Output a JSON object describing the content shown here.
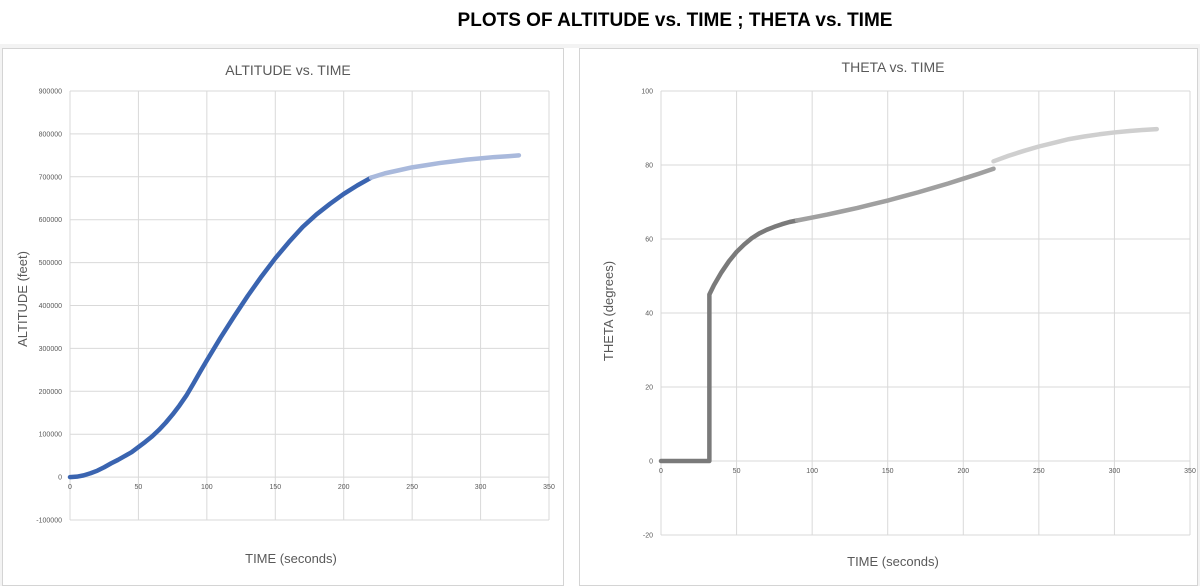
{
  "page": {
    "title": "PLOTS OF ALTITUDE vs. TIME  ;   THETA vs. TIME"
  },
  "colors": {
    "grid": "#d9d9d9",
    "text": "#595959"
  },
  "chart_data": [
    {
      "type": "line",
      "title": "ALTITUDE vs. TIME",
      "xlabel": "TIME (seconds)",
      "ylabel": "ALTITUDE (feet)",
      "xlim": [
        0,
        350
      ],
      "ylim": [
        -100000,
        900000
      ],
      "xticks": [
        0,
        50,
        100,
        150,
        200,
        250,
        300,
        350
      ],
      "yticks": [
        -100000,
        0,
        100000,
        200000,
        300000,
        400000,
        500000,
        600000,
        700000,
        800000,
        900000
      ],
      "grid": true,
      "series": [
        {
          "color": "#3a64b0",
          "x": [
            0,
            5,
            10,
            15,
            20,
            25,
            30,
            35,
            40,
            45,
            50,
            55,
            60,
            65,
            70,
            75,
            80,
            85,
            90,
            95,
            100,
            110,
            120,
            130,
            140,
            150,
            160,
            170,
            180,
            190,
            200,
            210,
            220
          ],
          "y": [
            0,
            1000,
            4000,
            9000,
            15000,
            23000,
            32000,
            40000,
            49000,
            58000,
            70000,
            82000,
            95000,
            110000,
            127000,
            146000,
            167000,
            190000,
            217000,
            245000,
            272000,
            325000,
            375000,
            423000,
            468000,
            510000,
            548000,
            583000,
            612000,
            637000,
            660000,
            680000,
            698000
          ]
        },
        {
          "color": "#a9b9dc",
          "x": [
            220,
            230,
            240,
            250,
            260,
            270,
            280,
            290,
            300,
            310,
            320,
            328
          ],
          "y": [
            698000,
            708000,
            715000,
            722000,
            727000,
            732000,
            736000,
            740000,
            743000,
            746000,
            748000,
            750000
          ]
        }
      ]
    },
    {
      "type": "line",
      "title": "THETA vs. TIME",
      "xlabel": "TIME (seconds)",
      "ylabel": "THETA (degrees)",
      "xlim": [
        0,
        350
      ],
      "ylim": [
        -20,
        100
      ],
      "xticks": [
        0,
        50,
        100,
        150,
        200,
        250,
        300,
        350
      ],
      "yticks": [
        -20,
        0,
        20,
        40,
        60,
        80,
        100
      ],
      "grid": true,
      "series": [
        {
          "color": "#7a7a7a",
          "x": [
            0,
            10,
            20,
            32,
            32,
            35,
            40,
            45,
            50,
            55,
            60,
            65,
            70,
            75,
            80,
            85,
            90
          ],
          "y": [
            0,
            0,
            0,
            0,
            45,
            47.5,
            51,
            54,
            56.5,
            58.5,
            60.2,
            61.5,
            62.5,
            63.3,
            64,
            64.6,
            65
          ]
        },
        {
          "color": "#a0a0a0",
          "x": [
            90,
            100,
            110,
            120,
            130,
            140,
            150,
            160,
            170,
            180,
            190,
            200,
            210,
            220
          ],
          "y": [
            65,
            65.8,
            66.6,
            67.5,
            68.4,
            69.4,
            70.4,
            71.5,
            72.6,
            73.8,
            75,
            76.3,
            77.6,
            79
          ]
        },
        {
          "color": "#cfcfcf",
          "x": [
            220,
            230,
            240,
            250,
            260,
            270,
            280,
            290,
            300,
            310,
            320,
            328
          ],
          "y": [
            81,
            82.5,
            83.8,
            85,
            86,
            87,
            87.7,
            88.3,
            88.8,
            89.2,
            89.5,
            89.7
          ]
        }
      ]
    }
  ]
}
